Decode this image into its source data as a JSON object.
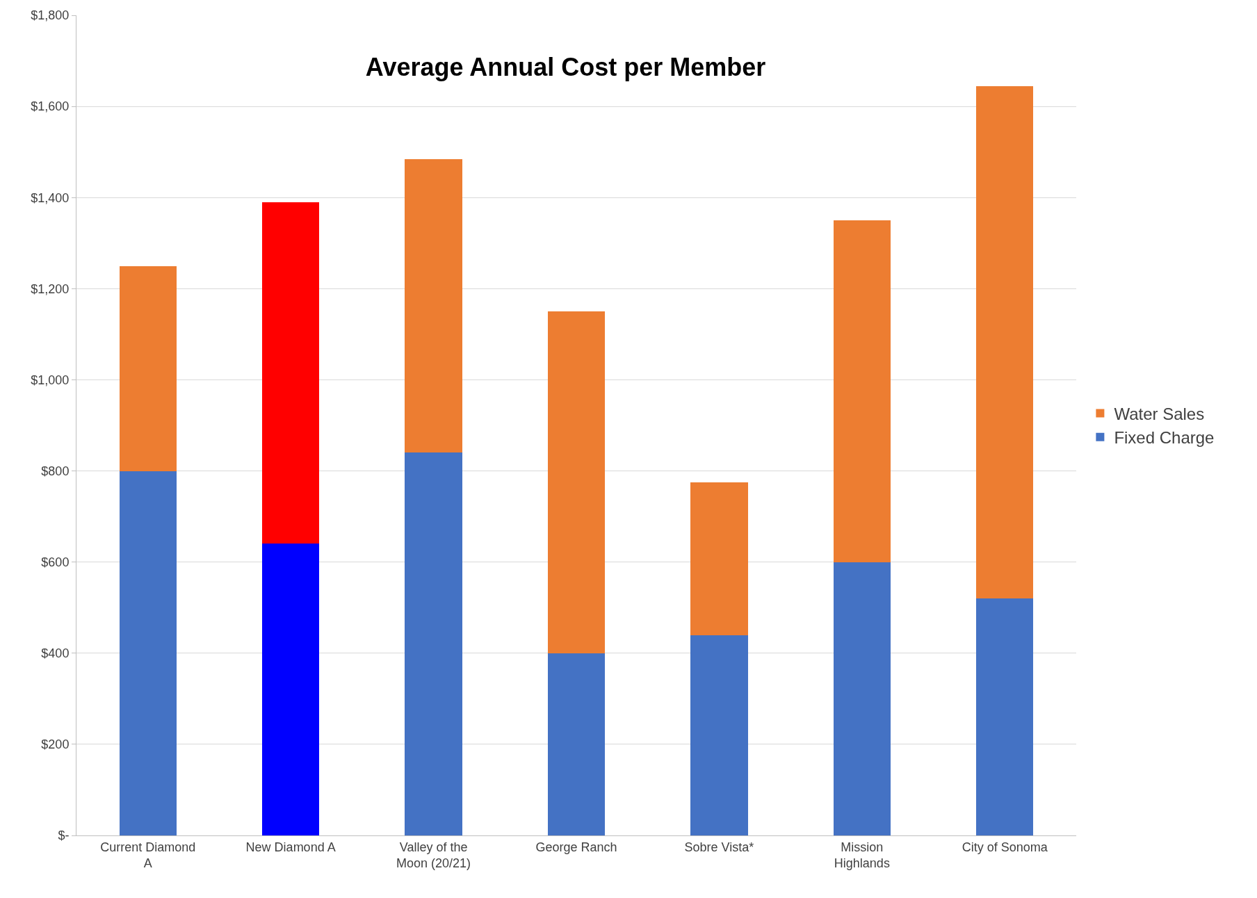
{
  "chart_data": {
    "type": "bar",
    "title": "Average Annual Cost per Member",
    "stacked": true,
    "categories": [
      "Current Diamond A",
      "New Diamond A",
      "Valley of the Moon (20/21)",
      "George Ranch",
      "Sobre Vista*",
      "Mission Highlands",
      "City of Sonoma"
    ],
    "series": [
      {
        "name": "Fixed Charge",
        "color": "#4472c4",
        "colors": [
          null,
          "#0000ff",
          null,
          null,
          null,
          null,
          null
        ],
        "values": [
          800,
          640,
          840,
          400,
          440,
          600,
          520
        ]
      },
      {
        "name": "Water Sales",
        "color": "#ed7d31",
        "colors": [
          null,
          "#ff0000",
          null,
          null,
          null,
          null,
          null
        ],
        "values": [
          450,
          750,
          645,
          750,
          335,
          750,
          1125
        ]
      }
    ],
    "ylim": [
      0,
      1800
    ],
    "yticks": [
      {
        "value": 0,
        "label": "$-"
      },
      {
        "value": 200,
        "label": "$200"
      },
      {
        "value": 400,
        "label": "$400"
      },
      {
        "value": 600,
        "label": "$600"
      },
      {
        "value": 800,
        "label": "$800"
      },
      {
        "value": 1000,
        "label": "$1,000"
      },
      {
        "value": 1200,
        "label": "$1,200"
      },
      {
        "value": 1400,
        "label": "$1,400"
      },
      {
        "value": 1600,
        "label": "$1,600"
      },
      {
        "value": 1800,
        "label": "$1,800"
      }
    ],
    "grid": "y",
    "legend": "right"
  }
}
